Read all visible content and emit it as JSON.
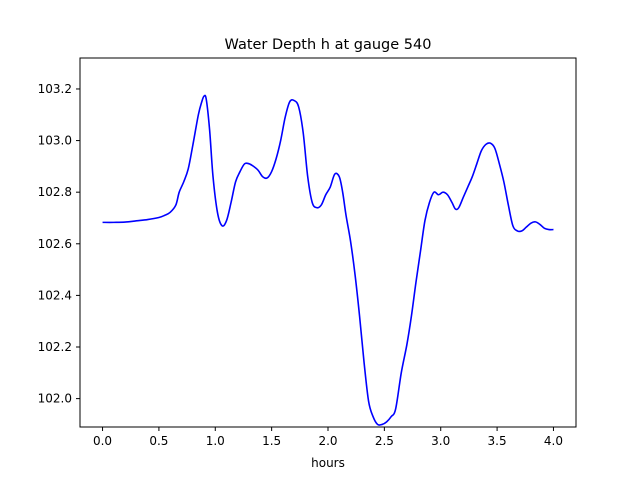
{
  "chart_data": {
    "type": "line",
    "title": "Water Depth h at gauge 540",
    "xlabel": "hours",
    "ylabel": "",
    "xlim": [
      -0.2,
      4.2
    ],
    "ylim": [
      101.89,
      103.32
    ],
    "x_ticks": [
      0.0,
      0.5,
      1.0,
      1.5,
      2.0,
      2.5,
      3.0,
      3.5,
      4.0
    ],
    "x_tick_labels": [
      "0.0",
      "0.5",
      "1.0",
      "1.5",
      "2.0",
      "2.5",
      "3.0",
      "3.5",
      "4.0"
    ],
    "y_ticks": [
      102.0,
      102.2,
      102.4,
      102.6,
      102.8,
      103.0,
      103.2
    ],
    "y_tick_labels": [
      "102.0",
      "102.2",
      "102.4",
      "102.6",
      "102.8",
      "103.0",
      "103.2"
    ],
    "grid": false,
    "legend": "none",
    "series": [
      {
        "color": "#0000ff",
        "x": [
          0.0,
          0.1,
          0.2,
          0.3,
          0.4,
          0.5,
          0.55,
          0.6,
          0.65,
          0.68,
          0.72,
          0.76,
          0.8,
          0.85,
          0.88,
          0.9,
          0.92,
          0.95,
          0.98,
          1.02,
          1.06,
          1.1,
          1.14,
          1.18,
          1.22,
          1.26,
          1.3,
          1.34,
          1.38,
          1.42,
          1.46,
          1.5,
          1.54,
          1.58,
          1.62,
          1.66,
          1.7,
          1.74,
          1.78,
          1.82,
          1.86,
          1.9,
          1.94,
          1.98,
          2.02,
          2.06,
          2.1,
          2.13,
          2.16,
          2.2,
          2.24,
          2.28,
          2.32,
          2.36,
          2.4,
          2.44,
          2.48,
          2.52,
          2.56,
          2.6,
          2.65,
          2.7,
          2.74,
          2.78,
          2.82,
          2.86,
          2.9,
          2.94,
          2.98,
          3.02,
          3.06,
          3.1,
          3.13,
          3.16,
          3.2,
          3.24,
          3.28,
          3.32,
          3.36,
          3.4,
          3.44,
          3.48,
          3.52,
          3.56,
          3.6,
          3.64,
          3.68,
          3.72,
          3.76,
          3.8,
          3.84,
          3.88,
          3.92,
          3.96,
          4.0
        ],
        "y": [
          102.683,
          102.683,
          102.684,
          102.689,
          102.694,
          102.702,
          102.71,
          102.722,
          102.75,
          102.8,
          102.84,
          102.89,
          102.98,
          103.1,
          103.15,
          103.172,
          103.16,
          103.04,
          102.86,
          102.72,
          102.67,
          102.69,
          102.76,
          102.84,
          102.88,
          102.91,
          102.91,
          102.9,
          102.885,
          102.86,
          102.855,
          102.88,
          102.93,
          103.0,
          103.09,
          103.15,
          103.155,
          103.13,
          103.03,
          102.86,
          102.76,
          102.74,
          102.75,
          102.79,
          102.82,
          102.87,
          102.86,
          102.8,
          102.71,
          102.61,
          102.48,
          102.32,
          102.14,
          101.99,
          101.93,
          101.9,
          101.9,
          101.91,
          101.93,
          101.96,
          102.1,
          102.21,
          102.32,
          102.45,
          102.57,
          102.69,
          102.76,
          102.8,
          102.79,
          102.8,
          102.79,
          102.76,
          102.735,
          102.74,
          102.78,
          102.82,
          102.86,
          102.91,
          102.96,
          102.985,
          102.99,
          102.97,
          102.91,
          102.84,
          102.75,
          102.67,
          102.65,
          102.65,
          102.665,
          102.68,
          102.685,
          102.675,
          102.66,
          102.655,
          102.655
        ]
      }
    ]
  }
}
